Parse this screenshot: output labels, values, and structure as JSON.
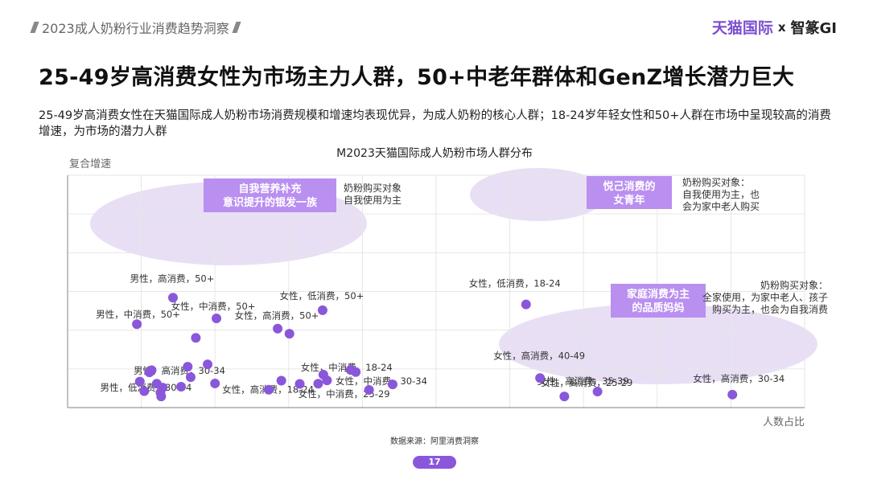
{
  "header": {
    "report_title": "2023成人奶粉行业消费趋势洞察",
    "brand_left": "天猫国际",
    "brand_x": "x",
    "brand_right": "智篆GI"
  },
  "headline": "25-49岁高消费女性为市场主力人群，50+中老年群体和GenZ增长潜力巨大",
  "description": "25-49岁高消费女性在天猫国际成人奶粉市场消费规模和增速均表现优异，为成人奶粉的核心人群；18-24岁年轻女性和50+人群在市场中呈现较高的消费增速，为市场的潜力人群",
  "chart_data": {
    "type": "scatter",
    "title": "M2023天猫国际成人奶粉市场人群分布",
    "xlabel": "人数占比",
    "ylabel": "复合增速",
    "xlim": [
      0,
      100
    ],
    "ylim": [
      0,
      100
    ],
    "grid": true,
    "points": [
      {
        "x": 14.3,
        "y": 47.3,
        "label": "男性，高消费，50+"
      },
      {
        "x": 9.4,
        "y": 35.9,
        "label": "男性，中消费，50+"
      },
      {
        "x": 20.2,
        "y": 38.4,
        "label": "女性，中消费，50+"
      },
      {
        "x": 34.6,
        "y": 41.9,
        "label": "女性，低消费，50+"
      },
      {
        "x": 28.5,
        "y": 34.0,
        "label": "女性，高消费，50+"
      },
      {
        "x": 30.1,
        "y": 31.8,
        "label": ""
      },
      {
        "x": 17.4,
        "y": 30.0,
        "label": ""
      },
      {
        "x": 16.3,
        "y": 17.6,
        "label": ""
      },
      {
        "x": 19.0,
        "y": 18.6,
        "label": ""
      },
      {
        "x": 11.4,
        "y": 16.1,
        "label": ""
      },
      {
        "x": 11.1,
        "y": 15.2,
        "label": ""
      },
      {
        "x": 39.1,
        "y": 15.3,
        "label": ""
      },
      {
        "x": 34.7,
        "y": 14.2,
        "label": ""
      },
      {
        "x": 16.7,
        "y": 13.1,
        "label": "男性，高消费，30-34"
      },
      {
        "x": 9.8,
        "y": 11.2,
        "label": ""
      },
      {
        "x": 12.1,
        "y": 10.3,
        "label": ""
      },
      {
        "x": 20.0,
        "y": 10.4,
        "label": ""
      },
      {
        "x": 29.0,
        "y": 11.6,
        "label": ""
      },
      {
        "x": 35.2,
        "y": 11.7,
        "label": ""
      },
      {
        "x": 31.5,
        "y": 10.2,
        "label": ""
      },
      {
        "x": 34.0,
        "y": 10.3,
        "label": ""
      },
      {
        "x": 38.4,
        "y": 16.2,
        "label": "女性，中消费，18-24"
      },
      {
        "x": 44.1,
        "y": 10.0,
        "label": "女性，中消费，30-34"
      },
      {
        "x": 15.4,
        "y": 9.0,
        "label": ""
      },
      {
        "x": 12.9,
        "y": 8.6,
        "label": ""
      },
      {
        "x": 27.3,
        "y": 7.7,
        "label": "女性，高消费，18-24"
      },
      {
        "x": 40.9,
        "y": 7.6,
        "label": "女性，中消费，25-29"
      },
      {
        "x": 10.4,
        "y": 7.1,
        "label": ""
      },
      {
        "x": 12.6,
        "y": 6.5,
        "label": "男性，低消费，30-34"
      },
      {
        "x": 12.7,
        "y": 4.8,
        "label": ""
      },
      {
        "x": 62.2,
        "y": 44.4,
        "label": "女性，低消费，18-24"
      },
      {
        "x": 64.1,
        "y": 12.7,
        "label": "女性，高消费，40-49"
      },
      {
        "x": 71.9,
        "y": 6.9,
        "label": "女性，高消费，35-39"
      },
      {
        "x": 67.4,
        "y": 4.8,
        "label": "女性，高消费，25-29"
      },
      {
        "x": 90.2,
        "y": 5.6,
        "label": "女性，高消费，30-34"
      }
    ],
    "annotations": [
      {
        "tag": "自我营养补充\n意识提升的银发一族",
        "note": "奶粉购买对象\n自我使用为主"
      },
      {
        "tag": "悦己消费的\n女青年",
        "note": "奶粉购买对象：\n自我使用为主，也\n会为家中老人购买"
      },
      {
        "tag": "家庭消费为主\n的品质妈妈",
        "note": "奶粉购买对象：\n全家使用，为家中老人、孩子\n购买为主，也会为自我消费"
      }
    ],
    "colors": {
      "point": "#8a57db",
      "cluster": "#e8dff5",
      "tag_bg": "#b98ff0",
      "tag_text": "#ffffff",
      "grid": "#e6e6e6",
      "axis": "#999999"
    }
  },
  "footer": {
    "source": "数据来源：阿里消费洞察",
    "page": "17"
  }
}
